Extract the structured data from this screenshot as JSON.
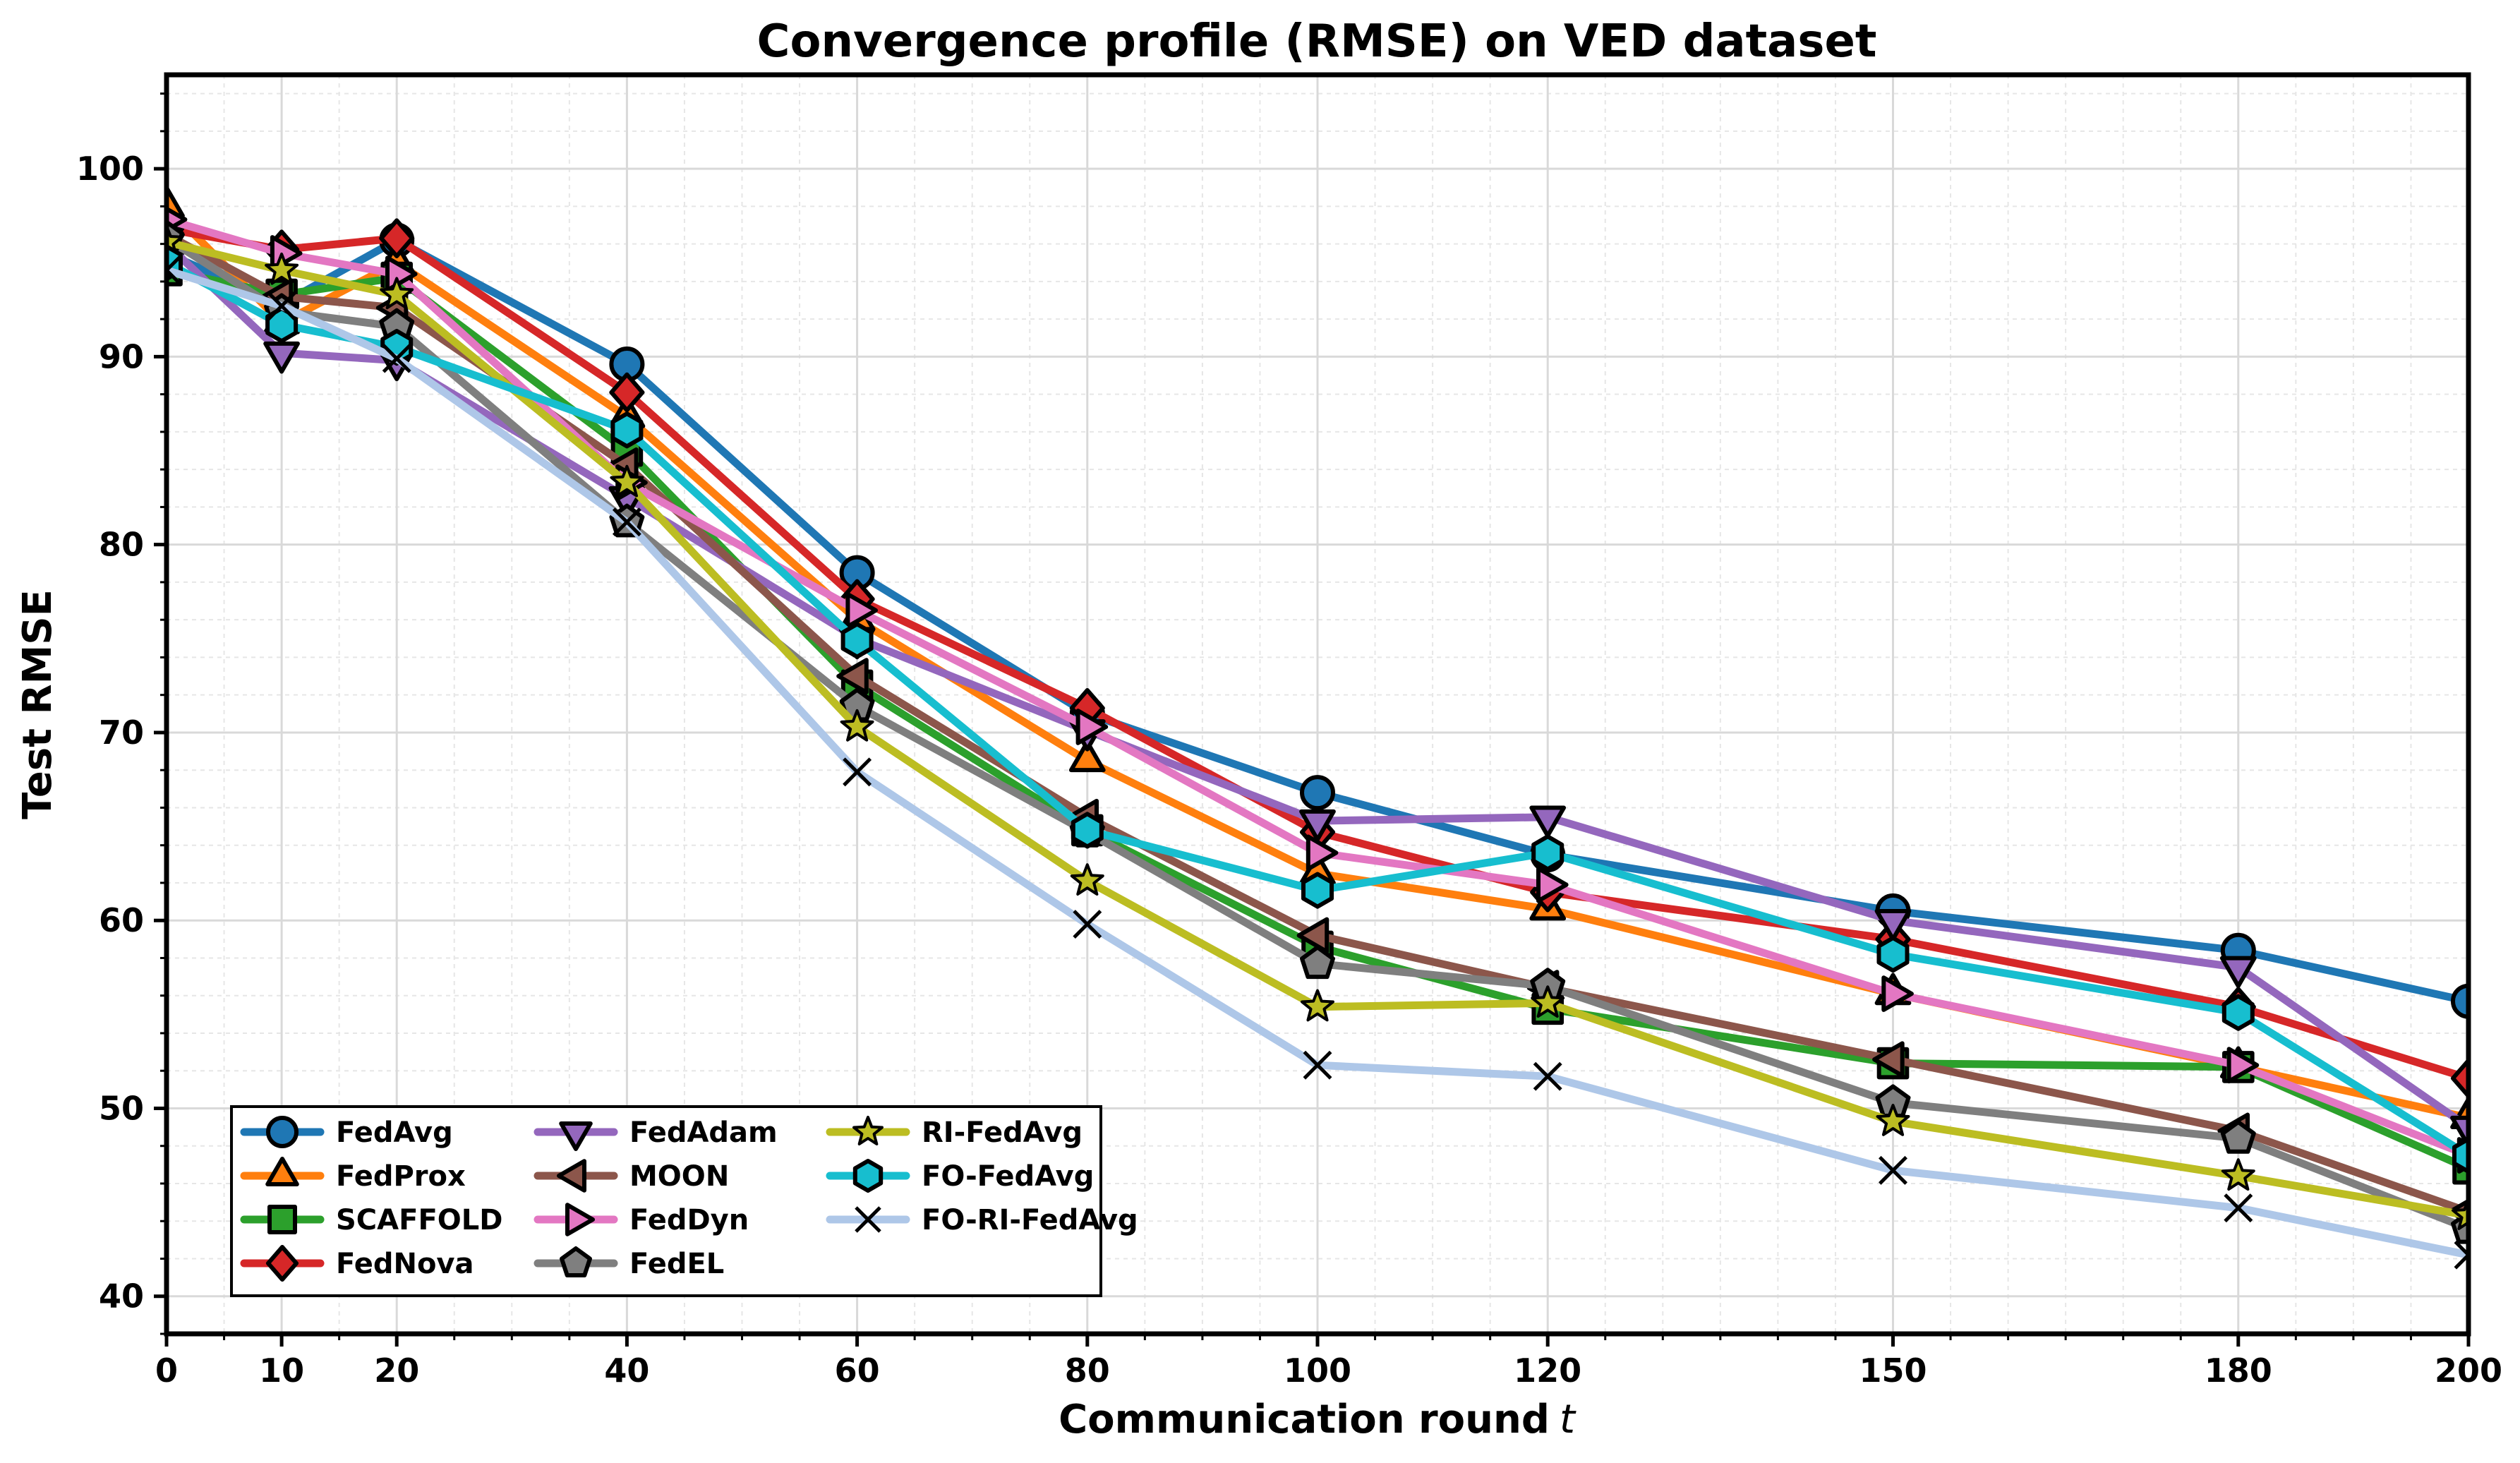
{
  "chart_data": {
    "type": "line",
    "title": "Convergence profile (RMSE) on VED dataset",
    "xlabel": "Communication round",
    "xlabel_var": "t",
    "ylabel": "Test RMSE",
    "xlim": [
      0,
      200
    ],
    "ylim": [
      38,
      105
    ],
    "xticks": [
      0,
      10,
      20,
      40,
      60,
      80,
      100,
      120,
      150,
      180,
      200
    ],
    "yticks": [
      40,
      50,
      60,
      70,
      80,
      90,
      100
    ],
    "grid": true,
    "legend_position": "lower-left",
    "x": [
      0,
      10,
      20,
      40,
      60,
      80,
      100,
      120,
      150,
      180,
      200
    ],
    "series": [
      {
        "name": "FedAvg",
        "color": "#1f77b4",
        "marker": "circle",
        "values": [
          95.5,
          92.8,
          96.2,
          89.6,
          78.5,
          71.0,
          66.8,
          63.5,
          60.5,
          58.4,
          55.7
        ]
      },
      {
        "name": "FedProx",
        "color": "#ff7f0e",
        "marker": "triangle-up",
        "values": [
          98.0,
          91.8,
          95.0,
          86.8,
          76.0,
          68.5,
          62.5,
          60.6,
          56.1,
          52.2,
          49.5
        ]
      },
      {
        "name": "SCAFFOLD",
        "color": "#2ca02c",
        "marker": "square",
        "values": [
          94.6,
          93.3,
          94.2,
          85.0,
          72.5,
          64.8,
          58.6,
          55.3,
          52.4,
          52.2,
          46.8
        ]
      },
      {
        "name": "FedNova",
        "color": "#d62728",
        "marker": "diamond",
        "values": [
          96.8,
          95.7,
          96.3,
          88.1,
          77.1,
          71.3,
          64.7,
          61.5,
          59.0,
          55.4,
          51.6
        ]
      },
      {
        "name": "FedAdam",
        "color": "#9467bd",
        "marker": "triangle-down",
        "values": [
          96.0,
          90.2,
          89.8,
          82.5,
          75.0,
          70.1,
          65.3,
          65.5,
          60.0,
          57.5,
          49.0
        ]
      },
      {
        "name": "MOON",
        "color": "#8c564b",
        "marker": "triangle-left",
        "values": [
          96.5,
          93.2,
          92.6,
          84.2,
          73.0,
          65.5,
          59.2,
          56.4,
          52.6,
          48.8,
          44.5
        ]
      },
      {
        "name": "FedDyn",
        "color": "#e377c2",
        "marker": "triangle-right",
        "values": [
          97.3,
          95.5,
          94.4,
          83.3,
          76.5,
          70.3,
          63.6,
          61.9,
          56.1,
          52.3,
          47.5
        ]
      },
      {
        "name": "FedEL",
        "color": "#7f7f7f",
        "marker": "pentagon",
        "values": [
          96.3,
          92.4,
          91.6,
          81.2,
          71.4,
          64.7,
          57.7,
          56.5,
          50.3,
          48.4,
          43.6
        ]
      },
      {
        "name": "RI-FedAvg",
        "color": "#bcbd22",
        "marker": "star",
        "values": [
          96.1,
          94.6,
          93.3,
          83.3,
          70.3,
          62.1,
          55.4,
          55.6,
          49.3,
          46.4,
          44.3
        ]
      },
      {
        "name": "FO-FedAvg",
        "color": "#17becf",
        "marker": "hexagon",
        "values": [
          95.0,
          91.7,
          90.5,
          86.1,
          74.9,
          64.8,
          61.6,
          63.6,
          58.2,
          55.1,
          47.5
        ]
      },
      {
        "name": "FO-RI-FedAvg",
        "color": "#aec7e8",
        "marker": "x",
        "values": [
          94.6,
          92.7,
          89.9,
          81.2,
          67.9,
          59.8,
          52.3,
          51.7,
          46.7,
          44.7,
          42.2
        ]
      }
    ]
  }
}
